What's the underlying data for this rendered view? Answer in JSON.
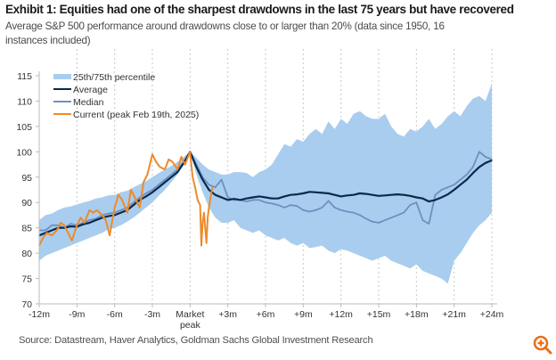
{
  "header": {
    "title": "Exhibit 1: Equities had one of the sharpest drawdowns in the last 75 years but have recovered",
    "subtitle": "Average S&P 500 performance around drawdowns close to or larger than 20% (data since 1950, 16 instances included)"
  },
  "footer": {
    "source": "Source: Datastream, Haver Analytics, Goldman Sachs Global Investment Research",
    "zoom_icon": "zoom-in-icon",
    "accent_color": "#e8701a"
  },
  "chart_data": {
    "type": "line",
    "title": "Exhibit 1: Equities had one of the sharpest drawdowns in the last 75 years but have recovered",
    "xlabel": "",
    "ylabel": "",
    "xlim": [
      -12,
      24
    ],
    "ylim": [
      70,
      115
    ],
    "grid": "vertical-dashed",
    "legend_position": "top-left",
    "y_ticks": [
      "70",
      "75",
      "80",
      "85",
      "90",
      "95",
      "100",
      "105",
      "110",
      "115"
    ],
    "y_tick_values": [
      70,
      75,
      80,
      85,
      90,
      95,
      100,
      105,
      110,
      115
    ],
    "x_tick_values": [
      -12,
      -9,
      -6,
      -3,
      0,
      3,
      6,
      9,
      12,
      15,
      18,
      21,
      24
    ],
    "x_ticks": [
      "-12m",
      "-9m",
      "-6m",
      "-3m",
      "Market peak",
      "+3m",
      "+6m",
      "+9m",
      "+12m",
      "+15m",
      "+18m",
      "+21m",
      "+24m"
    ],
    "legend": [
      {
        "name": "25th/75th percentile",
        "color": "#a9cdee",
        "kind": "band"
      },
      {
        "name": "Average",
        "color": "#0b2a4a",
        "kind": "line"
      },
      {
        "name": "Median",
        "color": "#6f8fbe",
        "kind": "line"
      },
      {
        "name": "Current (peak Feb 19th, 2025)",
        "color": "#ee8a2c",
        "kind": "line"
      }
    ],
    "band": {
      "name": "25th/75th percentile",
      "x": [
        -12,
        -11.5,
        -11,
        -10.5,
        -10,
        -9.5,
        -9,
        -8.5,
        -8,
        -7.5,
        -7,
        -6.5,
        -6,
        -5.5,
        -5,
        -4.5,
        -4,
        -3.5,
        -3,
        -2.5,
        -2,
        -1.5,
        -1,
        -0.5,
        0,
        0.5,
        1,
        1.5,
        2,
        2.5,
        3,
        3.5,
        4,
        4.5,
        5,
        5.5,
        6,
        6.5,
        7,
        7.5,
        8,
        8.5,
        9,
        9.5,
        10,
        10.5,
        11,
        11.5,
        12,
        12.5,
        13,
        13.5,
        14,
        14.5,
        15,
        15.5,
        16,
        16.5,
        17,
        17.5,
        18,
        18.5,
        19,
        19.5,
        20,
        20.5,
        21,
        21.5,
        22,
        22.5,
        23,
        23.5,
        24
      ],
      "upper": [
        86.5,
        87.5,
        87.8,
        88.5,
        89,
        89.2,
        89.6,
        90,
        90.3,
        90.8,
        91,
        91.4,
        91.5,
        92,
        92.3,
        93,
        93.6,
        94.2,
        95,
        95.8,
        96.5,
        97.2,
        98,
        99,
        100,
        98.8,
        97.5,
        96.5,
        96,
        95.5,
        95.5,
        96,
        96,
        95.8,
        95,
        96,
        96.5,
        97.5,
        99.5,
        101.5,
        101,
        102.5,
        102,
        103.5,
        104.5,
        103.5,
        106,
        104.5,
        106.5,
        105.5,
        107.5,
        108,
        107,
        106.5,
        106.5,
        107.5,
        105,
        103.5,
        103,
        104.5,
        104,
        105,
        106.5,
        104.5,
        105.5,
        107,
        108,
        107,
        109,
        110.5,
        111,
        110,
        113.5
      ],
      "lower": [
        78.5,
        79.5,
        80,
        80.5,
        81,
        81.5,
        82,
        82.5,
        83,
        83.5,
        84,
        84.7,
        85,
        85.5,
        86.2,
        87,
        88,
        89,
        90,
        91.3,
        92.5,
        94,
        95.5,
        97.5,
        100,
        95.5,
        92,
        89,
        87,
        86,
        86,
        86.5,
        85,
        84.5,
        84,
        84.5,
        83.5,
        83,
        82.5,
        83,
        82,
        81.5,
        82,
        81,
        81.2,
        81.5,
        80.5,
        80,
        80.8,
        80.5,
        80,
        79.5,
        79,
        78.5,
        79,
        79.5,
        78.5,
        78,
        77.5,
        77,
        77.8,
        76.5,
        76,
        75.5,
        75,
        74,
        78.5,
        80,
        82,
        84,
        85.5,
        86.5,
        88
      ]
    },
    "series": [
      {
        "name": "Average",
        "color": "#0b2a4a",
        "x": [
          -12,
          -11.5,
          -11,
          -10.5,
          -10,
          -9.5,
          -9,
          -8.5,
          -8,
          -7.5,
          -7,
          -6.5,
          -6,
          -5.5,
          -5,
          -4.5,
          -4,
          -3.5,
          -3,
          -2.5,
          -2,
          -1.5,
          -1,
          -0.5,
          0,
          0.5,
          1,
          1.5,
          2,
          2.5,
          3,
          3.5,
          4,
          4.5,
          5,
          5.5,
          6,
          6.5,
          7,
          7.5,
          8,
          8.5,
          9,
          9.5,
          10,
          10.5,
          11,
          11.5,
          12,
          12.5,
          13,
          13.5,
          14,
          14.5,
          15,
          15.5,
          16,
          16.5,
          17,
          17.5,
          18,
          18.5,
          19,
          19.5,
          20,
          20.5,
          21,
          21.5,
          22,
          22.5,
          23,
          23.5,
          24
        ],
        "values": [
          83.5,
          84,
          84.5,
          85,
          85,
          85.3,
          85.2,
          85.7,
          86,
          86.5,
          87,
          87.3,
          87.5,
          88,
          88.5,
          89.5,
          90.5,
          91.2,
          92,
          93,
          94,
          95,
          96,
          97.8,
          100,
          97,
          94.5,
          92.5,
          91.5,
          91,
          90.5,
          90.7,
          90.5,
          90.8,
          91,
          91.2,
          91,
          90.8,
          90.8,
          91.2,
          91.5,
          91.6,
          91.8,
          92.1,
          92,
          91.9,
          91.8,
          91.5,
          91.2,
          91.4,
          91.5,
          91.8,
          91.7,
          91.5,
          91.3,
          91.4,
          91.5,
          91.6,
          91.5,
          91.3,
          91,
          90.8,
          90.2,
          90.5,
          91,
          91.6,
          92.5,
          93.5,
          94.5,
          95.8,
          97,
          97.8,
          98.3
        ]
      },
      {
        "name": "Median",
        "color": "#6f8fbe",
        "x": [
          -12,
          -11.5,
          -11,
          -10.5,
          -10,
          -9.5,
          -9,
          -8.5,
          -8,
          -7.5,
          -7,
          -6.5,
          -6,
          -5.5,
          -5,
          -4.5,
          -4,
          -3.5,
          -3,
          -2.5,
          -2,
          -1.5,
          -1,
          -0.5,
          0,
          0.5,
          1,
          1.5,
          2,
          2.5,
          3,
          3.5,
          4,
          4.5,
          5,
          5.5,
          6,
          6.5,
          7,
          7.5,
          8,
          8.5,
          9,
          9.5,
          10,
          10.5,
          11,
          11.5,
          12,
          12.5,
          13,
          13.5,
          14,
          14.5,
          15,
          15.5,
          16,
          16.5,
          17,
          17.5,
          18,
          18.5,
          19,
          19.5,
          20,
          20.5,
          21,
          21.5,
          22,
          22.5,
          23,
          23.5,
          24
        ],
        "values": [
          84.5,
          84.5,
          85.5,
          85.5,
          85,
          85.8,
          85.5,
          86,
          86.5,
          86.8,
          87.5,
          87.8,
          88,
          88.5,
          89,
          90,
          91,
          91.8,
          92.5,
          93.5,
          94.5,
          95.5,
          96.5,
          98,
          100,
          97.5,
          95,
          93.5,
          93,
          94.5,
          91,
          90.5,
          90.5,
          90.2,
          90.5,
          90.5,
          90,
          89.8,
          89.5,
          89,
          89.5,
          89.3,
          88.5,
          88.2,
          88.5,
          89,
          90.3,
          89,
          88.5,
          88.2,
          88,
          87.5,
          86.8,
          86.2,
          86,
          86.5,
          87,
          87.5,
          88,
          89.5,
          90,
          86.5,
          85.8,
          91.5,
          92.5,
          93,
          93.5,
          94.5,
          95.5,
          97,
          100,
          99,
          98.5
        ]
      },
      {
        "name": "Current (peak Feb 19th, 2025)",
        "color": "#ee8a2c",
        "x": [
          -12,
          -11.7,
          -11.4,
          -11,
          -10.6,
          -10.3,
          -10,
          -9.7,
          -9.4,
          -9,
          -8.7,
          -8.4,
          -8,
          -7.7,
          -7.4,
          -7,
          -6.7,
          -6.4,
          -6,
          -5.7,
          -5.4,
          -5,
          -4.7,
          -4.4,
          -4,
          -3.7,
          -3.4,
          -3,
          -2.7,
          -2.4,
          -2,
          -1.7,
          -1.4,
          -1,
          -0.7,
          -0.4,
          0,
          0.2,
          0.4,
          0.6,
          0.8,
          0.9,
          1.0,
          1.1,
          1.2,
          1.3,
          1.4,
          1.5,
          1.6,
          1.7,
          1.8
        ],
        "values": [
          81.5,
          83,
          84,
          83.5,
          84.5,
          86,
          85.5,
          84,
          82.5,
          85.5,
          87,
          86,
          88.5,
          88,
          88.5,
          87.5,
          86.5,
          83.5,
          89,
          91.5,
          90.5,
          88,
          92.5,
          91,
          89,
          94,
          95.5,
          99.5,
          98,
          97,
          96.5,
          98.5,
          98,
          96.5,
          99,
          97.5,
          100,
          95,
          93,
          90.5,
          89.5,
          81.5,
          86,
          88,
          85,
          82,
          87,
          89,
          90.5,
          92,
          93
        ]
      }
    ]
  }
}
